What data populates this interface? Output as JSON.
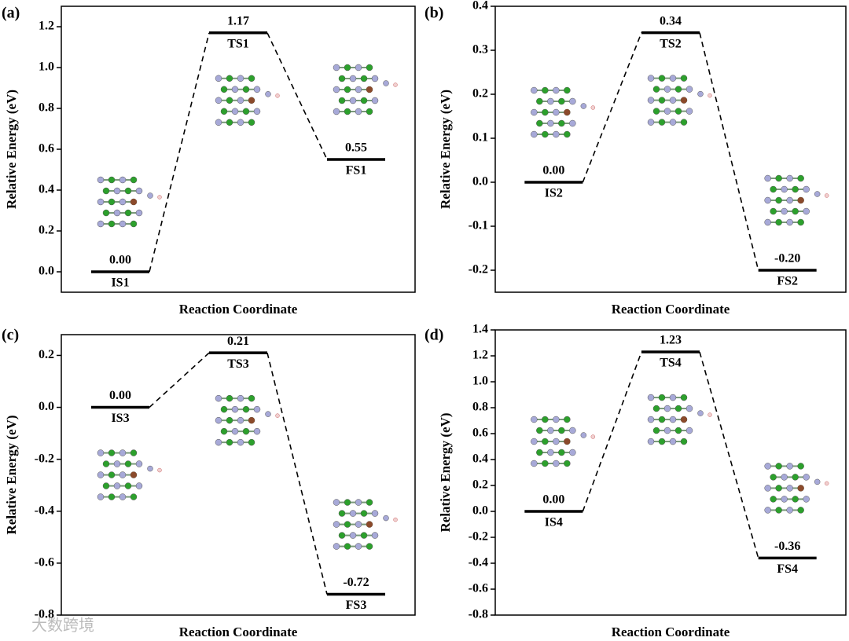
{
  "chart_data": [
    {
      "type": "energy",
      "panel": "(a)",
      "ylabel": "Relative Energy (eV)",
      "xlabel": "Reaction Coordinate",
      "categories": [
        "IS1",
        "TS1",
        "FS1"
      ],
      "values": [
        0,
        1.17,
        0.55
      ],
      "value_labels": [
        "0.00",
        "1.17",
        "0.55"
      ],
      "ylim": [
        -0.1,
        1.3
      ],
      "yticks": [
        {
          "value": 0,
          "label": "0.0"
        },
        0.2,
        0.4,
        0.6,
        0.8,
        {
          "value": 1,
          "label": "1.0"
        },
        1.2
      ]
    },
    {
      "type": "energy",
      "panel": "(b)",
      "ylabel": "Relative Energy (eV)",
      "xlabel": "Reaction Coordinate",
      "categories": [
        "IS2",
        "TS2",
        "FS2"
      ],
      "values": [
        0,
        0.34,
        -0.2
      ],
      "value_labels": [
        "0.00",
        "0.34",
        "-0.20"
      ],
      "ylim": [
        -0.25,
        0.4
      ],
      "yticks": [
        -0.2,
        -0.1,
        {
          "value": 0,
          "label": "0.0"
        },
        0.1,
        0.2,
        0.3,
        0.4
      ]
    },
    {
      "type": "energy",
      "panel": "(c)",
      "ylabel": "Relative Energy (eV)",
      "xlabel": "Reaction Coordinate",
      "categories": [
        "IS3",
        "TS3",
        "FS3"
      ],
      "values": [
        0,
        0.21,
        -0.72
      ],
      "value_labels": [
        "0.00",
        "0.21",
        "-0.72"
      ],
      "ylim": [
        -0.8,
        0.28
      ],
      "yticks": [
        -0.8,
        -0.6,
        -0.4,
        -0.2,
        {
          "value": 0,
          "label": "0.0"
        },
        0.2
      ]
    },
    {
      "type": "energy",
      "panel": "(d)",
      "ylabel": "Relative Energy (eV)",
      "xlabel": "Reaction Coordinate",
      "categories": [
        "IS4",
        "TS4",
        "FS4"
      ],
      "values": [
        0,
        1.23,
        -0.36
      ],
      "value_labels": [
        "0.00",
        "1.23",
        "-0.36"
      ],
      "ylim": [
        -0.8,
        1.4
      ],
      "yticks": [
        -0.8,
        -0.6,
        -0.4,
        -0.2,
        {
          "value": 0,
          "label": "0.0"
        },
        0.2,
        0.4,
        0.6,
        0.8,
        {
          "value": 1,
          "label": "1.0"
        },
        1.2,
        1.4
      ]
    }
  ],
  "watermark": "大数跨境"
}
